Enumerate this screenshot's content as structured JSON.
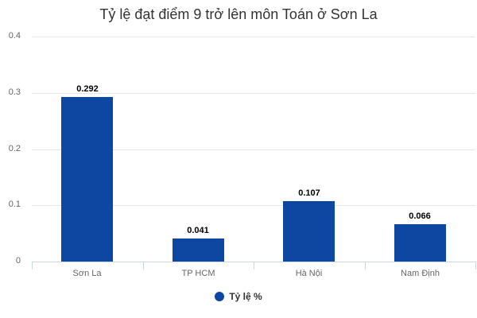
{
  "chart_data": {
    "type": "bar",
    "title": "Tỷ lệ đạt điểm 9 trở lên môn Toán ở Sơn La",
    "categories": [
      "Sơn La",
      "TP HCM",
      "Hà Nội",
      "Nam Định"
    ],
    "series": [
      {
        "name": "Tỷ lệ %",
        "values": [
          0.292,
          0.041,
          0.107,
          0.066
        ],
        "color": "#0d47a1"
      }
    ],
    "data_labels": [
      "0.292",
      "0.041",
      "0.107",
      "0.066"
    ],
    "xlabel": "",
    "ylabel": "",
    "ylim": [
      0,
      0.4
    ],
    "yticks": [
      "0",
      "0.1",
      "0.2",
      "0.3",
      "0.4"
    ],
    "grid": true,
    "legend_position": "bottom"
  }
}
